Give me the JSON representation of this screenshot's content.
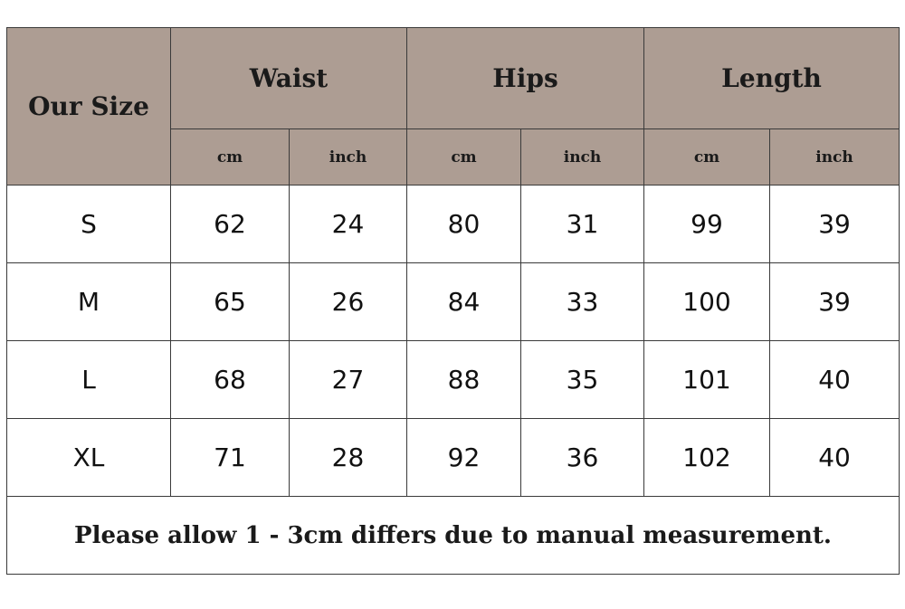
{
  "header": {
    "size_label": "Our Size",
    "groups": [
      "Waist",
      "Hips",
      "Length"
    ],
    "units": [
      "cm",
      "inch",
      "cm",
      "inch",
      "cm",
      "inch"
    ]
  },
  "rows": [
    {
      "size": "S",
      "values": [
        "62",
        "24",
        "80",
        "31",
        "99",
        "39"
      ]
    },
    {
      "size": "M",
      "values": [
        "65",
        "26",
        "84",
        "33",
        "100",
        "39"
      ]
    },
    {
      "size": "L",
      "values": [
        "68",
        "27",
        "88",
        "35",
        "101",
        "40"
      ]
    },
    {
      "size": "XL",
      "values": [
        "71",
        "28",
        "92",
        "36",
        "102",
        "40"
      ]
    }
  ],
  "note": "Please allow 1 - 3cm differs due to manual measurement.",
  "colors": {
    "header_bg": "#ad9d93",
    "border": "#3a3a3a"
  }
}
